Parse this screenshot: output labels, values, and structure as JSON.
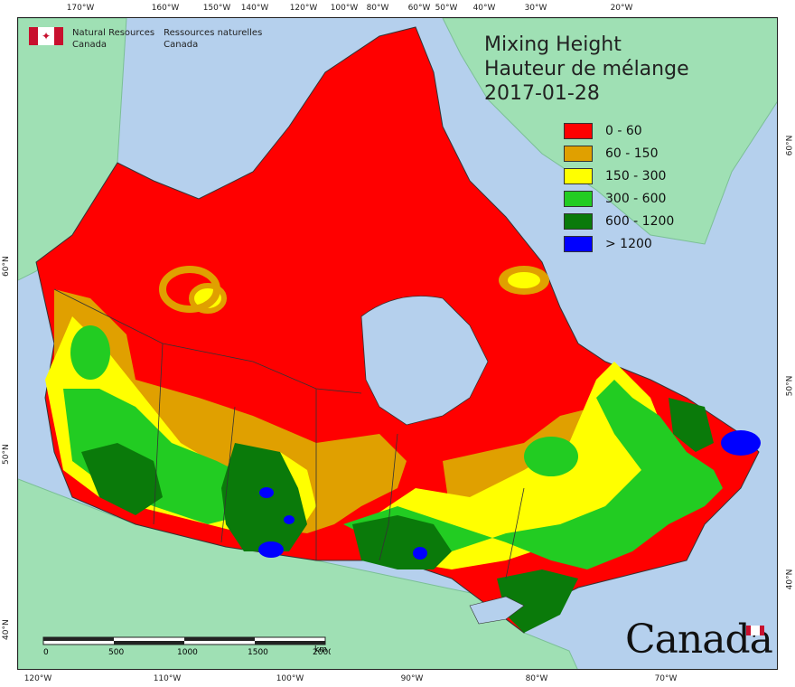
{
  "header": {
    "org_en_line1": "Natural Resources",
    "org_en_line2": "Canada",
    "org_fr_line1": "Ressources naturelles",
    "org_fr_line2": "Canada"
  },
  "title": {
    "line1": "Mixing Height",
    "line2": "Hauteur de mélange",
    "line3": "2017-01-28"
  },
  "legend": [
    {
      "label": "0 - 60",
      "color": "#ff0000"
    },
    {
      "label": "60 - 150",
      "color": "#e0a000"
    },
    {
      "label": "150 - 300",
      "color": "#ffff00"
    },
    {
      "label": "300 - 600",
      "color": "#22cc22"
    },
    {
      "label": "600 - 1200",
      "color": "#0a7a0a"
    },
    {
      "label": "> 1200",
      "color": "#0000ff"
    }
  ],
  "top_ticks": [
    "170°W",
    "160°W",
    "150°W",
    "140°W",
    "120°W",
    "100°W",
    "80°W",
    "60°W",
    "50°W",
    "40°W",
    "30°W",
    "20°W"
  ],
  "bottom_ticks": [
    "120°W",
    "110°W",
    "100°W",
    "90°W",
    "80°W",
    "70°W"
  ],
  "left_ticks": [
    "60°N",
    "50°N",
    "40°N"
  ],
  "right_ticks": [
    "60°N",
    "50°N",
    "40°N"
  ],
  "scale": {
    "labels": [
      "0",
      "500",
      "1000",
      "1500",
      "2000"
    ],
    "unit": "km"
  },
  "wordmark": "Canada",
  "colors": {
    "ocean": "#b5d0ed",
    "land_outside": "#9fe0b4",
    "border": "#333333"
  }
}
